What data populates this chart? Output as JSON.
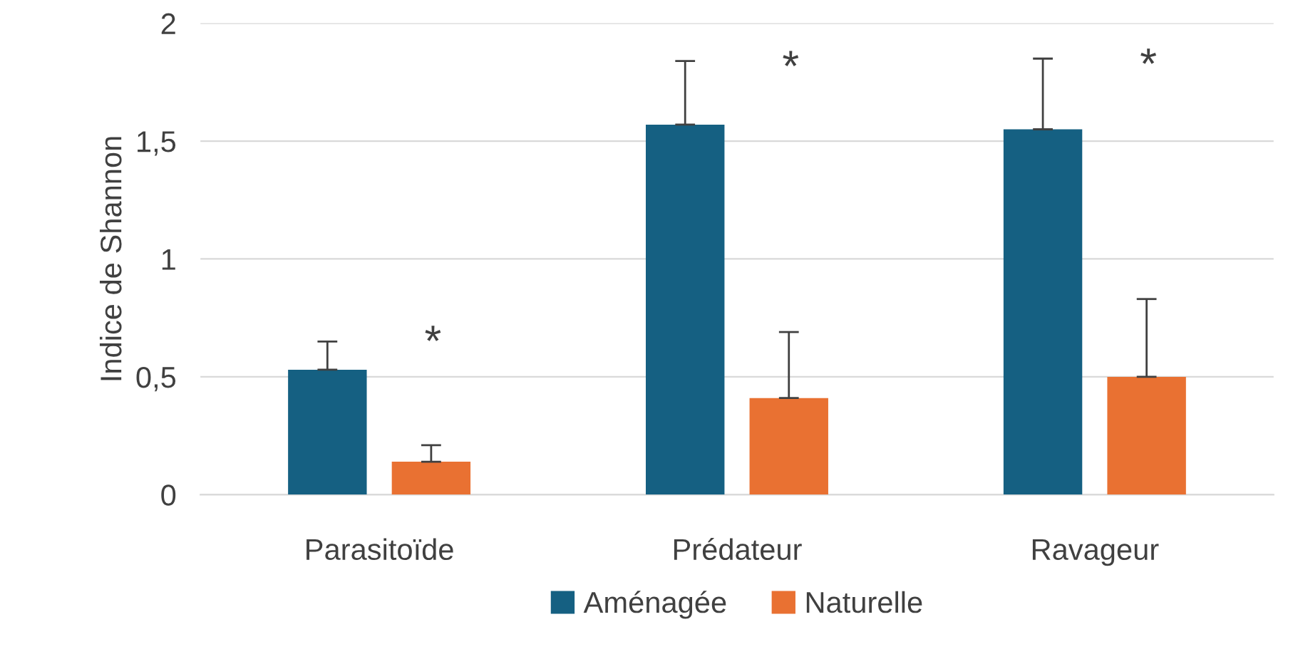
{
  "chart_data": {
    "type": "bar",
    "ylabel": "Indice de Shannon",
    "categories": [
      "Parasitoïde",
      "Prédateur",
      "Ravageur"
    ],
    "series": [
      {
        "name": "Aménagée",
        "color": "#156082",
        "values": [
          0.53,
          1.57,
          1.55
        ],
        "errors": [
          [
            0.53,
            0.65
          ],
          [
            1.57,
            1.84
          ],
          [
            1.55,
            1.85
          ]
        ]
      },
      {
        "name": "Naturelle",
        "color": "#e97132",
        "values": [
          0.14,
          0.41,
          0.5
        ],
        "errors": [
          [
            0.14,
            0.21
          ],
          [
            0.41,
            0.69
          ],
          [
            0.5,
            0.83
          ]
        ]
      }
    ],
    "ylim": [
      0,
      2
    ],
    "yticks": [
      0,
      {
        "value": 0.5,
        "label": "0,5"
      },
      1,
      {
        "value": 1.5,
        "label": "1,5"
      },
      2
    ],
    "grid": "y",
    "legend": "bottom",
    "annotations": [
      "*",
      "*",
      "*"
    ]
  }
}
